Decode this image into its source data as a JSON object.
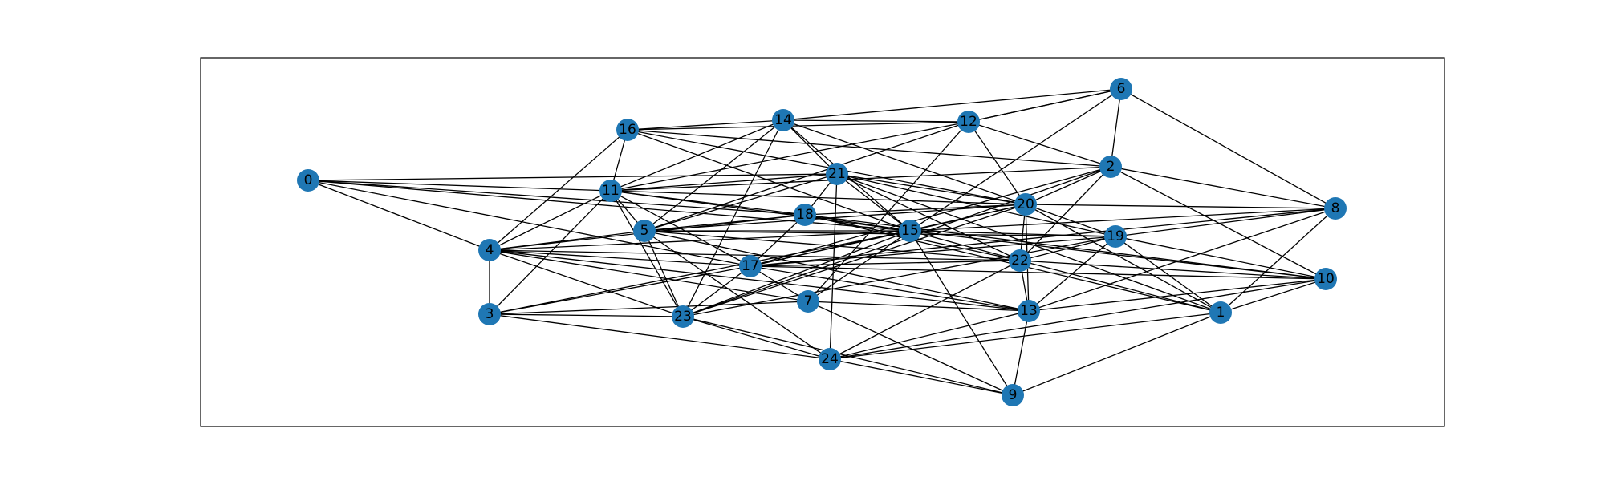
{
  "diagram": {
    "type": "network-graph",
    "node_color": "#1f77b4",
    "edge_color": "#000000",
    "label_color": "#000000",
    "frame_visible": true,
    "nodes": [
      "0",
      "1",
      "2",
      "3",
      "4",
      "5",
      "6",
      "7",
      "8",
      "9",
      "10",
      "11",
      "12",
      "13",
      "14",
      "15",
      "16",
      "17",
      "18",
      "19",
      "20",
      "21",
      "22",
      "23",
      "24"
    ],
    "edges": [
      [
        "0",
        "11"
      ],
      [
        "0",
        "4"
      ],
      [
        "0",
        "18"
      ],
      [
        "0",
        "17"
      ],
      [
        "0",
        "15"
      ],
      [
        "0",
        "21"
      ],
      [
        "16",
        "11"
      ],
      [
        "16",
        "14"
      ],
      [
        "16",
        "12"
      ],
      [
        "16",
        "2"
      ],
      [
        "16",
        "15"
      ],
      [
        "16",
        "20"
      ],
      [
        "16",
        "4"
      ],
      [
        "14",
        "12"
      ],
      [
        "14",
        "6"
      ],
      [
        "14",
        "11"
      ],
      [
        "14",
        "5"
      ],
      [
        "14",
        "21"
      ],
      [
        "14",
        "20"
      ],
      [
        "14",
        "15"
      ],
      [
        "14",
        "23"
      ],
      [
        "12",
        "6"
      ],
      [
        "12",
        "2"
      ],
      [
        "12",
        "20"
      ],
      [
        "12",
        "11"
      ],
      [
        "12",
        "5"
      ],
      [
        "12",
        "7"
      ],
      [
        "6",
        "2"
      ],
      [
        "6",
        "8"
      ],
      [
        "6",
        "15"
      ],
      [
        "6",
        "12"
      ],
      [
        "2",
        "11"
      ],
      [
        "2",
        "20"
      ],
      [
        "2",
        "8"
      ],
      [
        "2",
        "10"
      ],
      [
        "2",
        "22"
      ],
      [
        "2",
        "17"
      ],
      [
        "2",
        "23"
      ],
      [
        "21",
        "11"
      ],
      [
        "21",
        "5"
      ],
      [
        "21",
        "18"
      ],
      [
        "21",
        "15"
      ],
      [
        "21",
        "22"
      ],
      [
        "21",
        "20"
      ],
      [
        "21",
        "1"
      ],
      [
        "21",
        "19"
      ],
      [
        "21",
        "24"
      ],
      [
        "11",
        "4"
      ],
      [
        "11",
        "3"
      ],
      [
        "11",
        "5"
      ],
      [
        "11",
        "18"
      ],
      [
        "11",
        "17"
      ],
      [
        "11",
        "23"
      ],
      [
        "11",
        "15"
      ],
      [
        "11",
        "20"
      ],
      [
        "20",
        "8"
      ],
      [
        "20",
        "18"
      ],
      [
        "20",
        "15"
      ],
      [
        "20",
        "22"
      ],
      [
        "20",
        "13"
      ],
      [
        "20",
        "17"
      ],
      [
        "20",
        "19"
      ],
      [
        "20",
        "23"
      ],
      [
        "20",
        "5"
      ],
      [
        "20",
        "1"
      ],
      [
        "8",
        "19"
      ],
      [
        "8",
        "13"
      ],
      [
        "8",
        "1"
      ],
      [
        "8",
        "15"
      ],
      [
        "8",
        "17"
      ],
      [
        "18",
        "5"
      ],
      [
        "18",
        "15"
      ],
      [
        "18",
        "22"
      ],
      [
        "18",
        "17"
      ],
      [
        "18",
        "4"
      ],
      [
        "18",
        "10"
      ],
      [
        "18",
        "1"
      ],
      [
        "5",
        "4"
      ],
      [
        "5",
        "15"
      ],
      [
        "5",
        "23"
      ],
      [
        "5",
        "13"
      ],
      [
        "5",
        "24"
      ],
      [
        "5",
        "22"
      ],
      [
        "5",
        "19"
      ],
      [
        "15",
        "4"
      ],
      [
        "15",
        "17"
      ],
      [
        "15",
        "7"
      ],
      [
        "15",
        "23"
      ],
      [
        "15",
        "22"
      ],
      [
        "15",
        "19"
      ],
      [
        "15",
        "10"
      ],
      [
        "15",
        "9"
      ],
      [
        "15",
        "3"
      ],
      [
        "19",
        "17"
      ],
      [
        "19",
        "13"
      ],
      [
        "19",
        "1"
      ],
      [
        "19",
        "10"
      ],
      [
        "19",
        "23"
      ],
      [
        "19",
        "22"
      ],
      [
        "4",
        "3"
      ],
      [
        "4",
        "17"
      ],
      [
        "4",
        "13"
      ],
      [
        "4",
        "23"
      ],
      [
        "4",
        "7"
      ],
      [
        "4",
        "22"
      ],
      [
        "17",
        "7"
      ],
      [
        "17",
        "23"
      ],
      [
        "17",
        "3"
      ],
      [
        "17",
        "22"
      ],
      [
        "17",
        "13"
      ],
      [
        "17",
        "10"
      ],
      [
        "22",
        "13"
      ],
      [
        "22",
        "1"
      ],
      [
        "22",
        "24"
      ],
      [
        "22",
        "10"
      ],
      [
        "10",
        "13"
      ],
      [
        "10",
        "24"
      ],
      [
        "10",
        "1"
      ],
      [
        "3",
        "23"
      ],
      [
        "3",
        "24"
      ],
      [
        "3",
        "7"
      ],
      [
        "23",
        "24"
      ],
      [
        "23",
        "9"
      ],
      [
        "7",
        "13"
      ],
      [
        "7",
        "9"
      ],
      [
        "13",
        "9"
      ],
      [
        "13",
        "24"
      ],
      [
        "1",
        "24"
      ],
      [
        "1",
        "9"
      ],
      [
        "24",
        "9"
      ]
    ]
  }
}
